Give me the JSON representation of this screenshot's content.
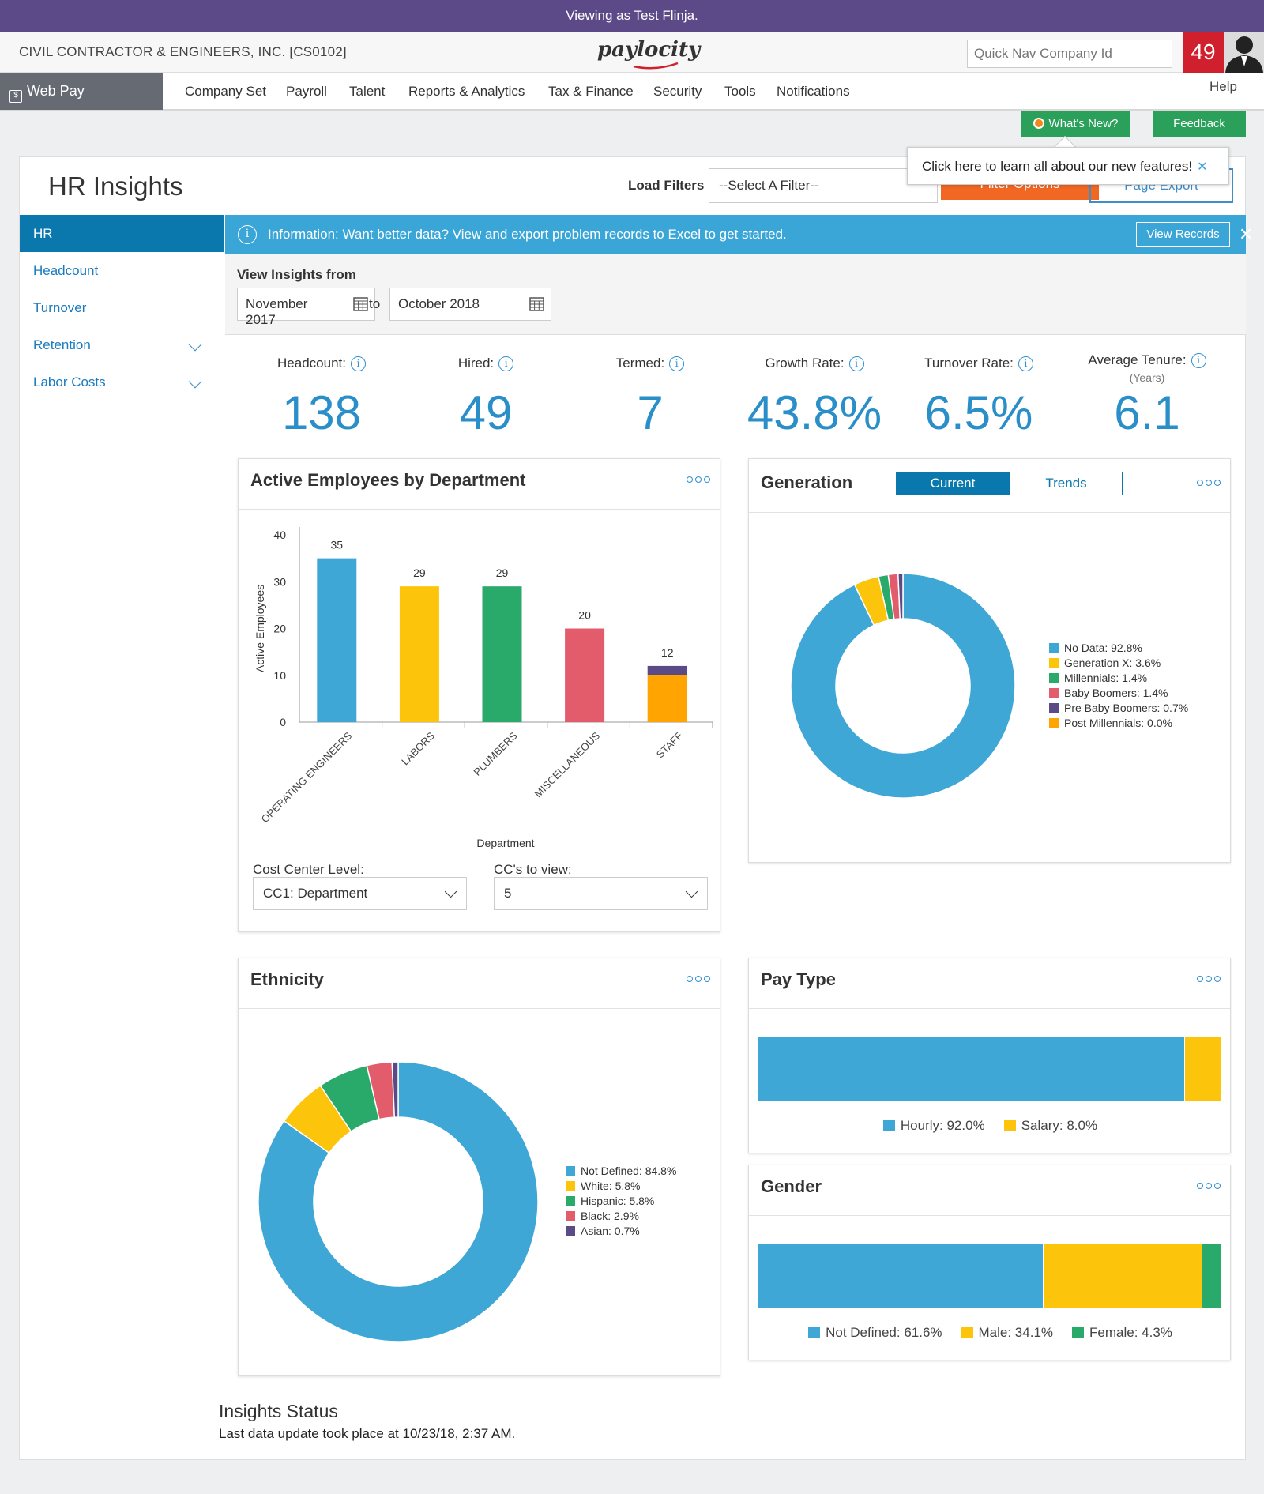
{
  "banner": {
    "text": "Viewing as Test Flinja."
  },
  "header": {
    "company": "CIVIL CONTRACTOR & ENGINEERS, INC. [CS0102]",
    "logo": "paylocity",
    "quicknav_placeholder": "Quick Nav Company Id",
    "notifications_count": "49"
  },
  "nav": {
    "webpay": "Web Pay",
    "items": [
      "Company Set",
      "Payroll",
      "Talent",
      "Reports & Analytics",
      "Tax & Finance",
      "Security",
      "Tools",
      "Notifications"
    ],
    "help": "Help"
  },
  "buttons": {
    "whats_new": "What's New?",
    "feedback": "Feedback"
  },
  "page": {
    "title": "HR Insights",
    "load_filters_label": "Load Filters",
    "filter_select": "--Select A Filter--",
    "filter_options": "Filter Options",
    "page_export": "Page Export",
    "tooltip": "Click here to learn all about our new features!"
  },
  "sidebar": {
    "items": [
      {
        "label": "HR"
      },
      {
        "label": "Headcount"
      },
      {
        "label": "Turnover"
      },
      {
        "label": "Retention"
      },
      {
        "label": "Labor Costs"
      }
    ]
  },
  "info": {
    "text": "Information: Want better data? View and export problem records to Excel to get started.",
    "view_records": "View Records"
  },
  "dates": {
    "label": "View Insights from",
    "from": "November 2017",
    "to_label": "to",
    "to": "October 2018"
  },
  "kpis": [
    {
      "label": "Headcount:",
      "value": "138"
    },
    {
      "label": "Hired:",
      "value": "49"
    },
    {
      "label": "Termed:",
      "value": "7"
    },
    {
      "label": "Growth Rate:",
      "value": "43.8%"
    },
    {
      "label": "Turnover Rate:",
      "value": "6.5%"
    },
    {
      "label": "Average Tenure:",
      "value": "6.1",
      "sub": "(Years)"
    }
  ],
  "cards": {
    "department": {
      "title": "Active Employees by Department",
      "cost_center_label": "Cost Center Level:",
      "cost_center_value": "CC1: Department",
      "ccs_label": "CC's to view:",
      "ccs_value": "5"
    },
    "generation": {
      "title": "Generation",
      "tab_current": "Current",
      "tab_trends": "Trends"
    },
    "ethnicity": {
      "title": "Ethnicity"
    },
    "paytype": {
      "title": "Pay Type"
    },
    "gender": {
      "title": "Gender"
    }
  },
  "status": {
    "title": "Insights Status",
    "text": "Last data update took place at 10/23/18, 2:37 AM."
  },
  "colors": {
    "blue": "#3fa7d6",
    "yellow": "#fcc40a",
    "green": "#2aaa6a",
    "red": "#e35c6c",
    "purple": "#5a4a86",
    "orange": "#ffa400"
  },
  "chart_data": [
    {
      "type": "bar",
      "title": "Active Employees by Department",
      "xlabel": "Department",
      "ylabel": "Active Employees",
      "ylim": [
        0,
        40
      ],
      "yticks": [
        0,
        10,
        20,
        30,
        40
      ],
      "categories": [
        "OPERATING ENGINEERS",
        "LABORS",
        "PLUMBERS",
        "MISCELLANEOUS",
        "STAFF"
      ],
      "values": [
        35,
        29,
        29,
        20,
        12
      ],
      "stacks": [
        [
          {
            "value": 35,
            "color": "#3fa7d6"
          }
        ],
        [
          {
            "value": 29,
            "color": "#fcc40a"
          }
        ],
        [
          {
            "value": 29,
            "color": "#2aaa6a"
          }
        ],
        [
          {
            "value": 20,
            "color": "#e35c6c"
          }
        ],
        [
          {
            "value": 10,
            "color": "#ffa400"
          },
          {
            "value": 2,
            "color": "#5a4a86"
          }
        ]
      ]
    },
    {
      "type": "pie",
      "title": "Generation",
      "slices": [
        {
          "label": "No Data: 92.8%",
          "value": 92.8,
          "color": "#3fa7d6"
        },
        {
          "label": "Generation X: 3.6%",
          "value": 3.6,
          "color": "#fcc40a"
        },
        {
          "label": "Millennials: 1.4%",
          "value": 1.4,
          "color": "#2aaa6a"
        },
        {
          "label": "Baby Boomers: 1.4%",
          "value": 1.4,
          "color": "#e35c6c"
        },
        {
          "label": "Pre Baby Boomers: 0.7%",
          "value": 0.7,
          "color": "#5a4a86"
        },
        {
          "label": "Post Millennials: 0.0%",
          "value": 0.0,
          "color": "#ffa400"
        }
      ]
    },
    {
      "type": "pie",
      "title": "Ethnicity",
      "slices": [
        {
          "label": "Not Defined: 84.8%",
          "value": 84.8,
          "color": "#3fa7d6"
        },
        {
          "label": "White: 5.8%",
          "value": 5.8,
          "color": "#fcc40a"
        },
        {
          "label": "Hispanic: 5.8%",
          "value": 5.8,
          "color": "#2aaa6a"
        },
        {
          "label": "Black: 2.9%",
          "value": 2.9,
          "color": "#e35c6c"
        },
        {
          "label": "Asian: 0.7%",
          "value": 0.7,
          "color": "#5a4a86"
        }
      ]
    },
    {
      "type": "bar",
      "title": "Pay Type",
      "segments": [
        {
          "label": "Hourly: 92.0%",
          "value": 92.0,
          "color": "#3fa7d6"
        },
        {
          "label": "Salary: 8.0%",
          "value": 8.0,
          "color": "#fcc40a"
        }
      ]
    },
    {
      "type": "bar",
      "title": "Gender",
      "segments": [
        {
          "label": "Not Defined: 61.6%",
          "value": 61.6,
          "color": "#3fa7d6"
        },
        {
          "label": "Male: 34.1%",
          "value": 34.1,
          "color": "#fcc40a"
        },
        {
          "label": "Female: 4.3%",
          "value": 4.3,
          "color": "#2aaa6a"
        }
      ]
    }
  ]
}
